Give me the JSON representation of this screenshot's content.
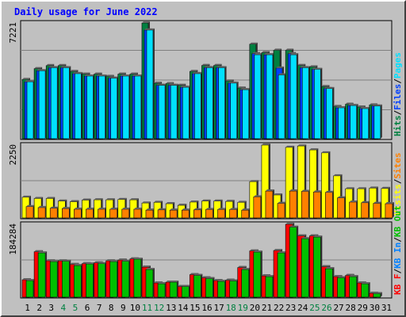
{
  "title": "Daily usage for June 2022",
  "colors": {
    "hits": "#008040",
    "files": "#0040ff",
    "pages": "#00e0ff",
    "visits": "#ffff00",
    "sites": "#ff8000",
    "kbin": "#0080ff",
    "kbout": "#00c000",
    "kbf": "#ff0000",
    "plot_bg": "#c0c0c0",
    "grid": "#808080",
    "weekend_label": "#008040",
    "day_label": "#000000"
  },
  "chart_data": [
    {
      "type": "bar",
      "panel": "requests",
      "categories": [
        "1",
        "2",
        "3",
        "4",
        "5",
        "6",
        "7",
        "8",
        "9",
        "10",
        "11",
        "12",
        "13",
        "14",
        "15",
        "16",
        "17",
        "18",
        "19",
        "20",
        "21",
        "22",
        "23",
        "24",
        "25",
        "26",
        "27",
        "28",
        "29",
        "30",
        "31"
      ],
      "ymax_label": "7221",
      "legend": [
        {
          "key": "hits",
          "label": "Hits"
        },
        {
          "key": "sep",
          "label": "/"
        },
        {
          "key": "files",
          "label": "Files"
        },
        {
          "key": "sep",
          "label": "/"
        },
        {
          "key": "pages",
          "label": "Pages"
        }
      ],
      "series": [
        {
          "name": "Hits",
          "key": "hits",
          "values": [
            3700,
            4370,
            4560,
            4560,
            4200,
            4030,
            4030,
            3890,
            4030,
            4030,
            7221,
            3460,
            3440,
            3330,
            4200,
            4570,
            4570,
            3600,
            3160,
            5900,
            5370,
            5520,
            5520,
            4570,
            4480,
            3250,
            2010,
            2150,
            1980,
            2110,
            0
          ]
        },
        {
          "name": "Files",
          "key": "files",
          "values": [
            3550,
            4240,
            4430,
            4430,
            4060,
            3910,
            3910,
            3780,
            3910,
            3910,
            6780,
            3330,
            3330,
            3210,
            4060,
            4430,
            4430,
            3470,
            3060,
            5310,
            5240,
            4410,
            5310,
            4430,
            4330,
            3130,
            1930,
            2070,
            1880,
            2040,
            0
          ]
        },
        {
          "name": "Pages",
          "key": "pages",
          "values": [
            3550,
            4240,
            4430,
            4430,
            4060,
            3910,
            3910,
            3780,
            3910,
            3910,
            6780,
            3330,
            3330,
            3210,
            4060,
            4430,
            4430,
            3470,
            3060,
            5240,
            5240,
            3980,
            5240,
            4430,
            4330,
            3130,
            1930,
            2070,
            1880,
            2040,
            0
          ]
        }
      ]
    },
    {
      "type": "bar",
      "panel": "visits",
      "categories": [
        "1",
        "2",
        "3",
        "4",
        "5",
        "6",
        "7",
        "8",
        "9",
        "10",
        "11",
        "12",
        "13",
        "14",
        "15",
        "16",
        "17",
        "18",
        "19",
        "20",
        "21",
        "22",
        "23",
        "24",
        "25",
        "26",
        "27",
        "28",
        "29",
        "30",
        "31"
      ],
      "ymax_label": "2250",
      "legend": [
        {
          "key": "visits",
          "label": "Visits"
        },
        {
          "key": "sep",
          "label": "/"
        },
        {
          "key": "sites",
          "label": "Sites"
        }
      ],
      "series": [
        {
          "name": "Visits",
          "key": "visits",
          "values": [
            640,
            600,
            600,
            520,
            500,
            550,
            560,
            560,
            570,
            560,
            460,
            480,
            440,
            390,
            490,
            520,
            520,
            510,
            480,
            1120,
            2250,
            710,
            2180,
            2220,
            2100,
            2010,
            1300,
            900,
            900,
            920,
            910
          ],
          "note": "day 31 has no bar"
        },
        {
          "name": "Sites",
          "key": "sites",
          "values": [
            350,
            320,
            300,
            290,
            270,
            270,
            270,
            270,
            270,
            270,
            240,
            250,
            240,
            240,
            250,
            260,
            260,
            260,
            240,
            650,
            830,
            450,
            830,
            820,
            800,
            790,
            620,
            490,
            470,
            450,
            440
          ]
        }
      ]
    },
    {
      "type": "bar",
      "panel": "kbytes",
      "categories": [
        "1",
        "2",
        "3",
        "4",
        "5",
        "6",
        "7",
        "8",
        "9",
        "10",
        "11",
        "12",
        "13",
        "14",
        "15",
        "16",
        "17",
        "18",
        "19",
        "20",
        "21",
        "22",
        "23",
        "24",
        "25",
        "26",
        "27",
        "28",
        "29",
        "30",
        "31"
      ],
      "ymax_label": "184284",
      "legend": [
        {
          "key": "kbf",
          "label": "KB F"
        },
        {
          "key": "sep",
          "label": "/"
        },
        {
          "key": "kbin",
          "label": "KB In"
        },
        {
          "key": "sep",
          "label": "/"
        },
        {
          "key": "kbout",
          "label": "KB Out"
        }
      ],
      "series": [
        {
          "name": "KB F",
          "key": "kbf",
          "values": [
            44000,
            115000,
            92000,
            92000,
            83000,
            85000,
            87000,
            92000,
            94000,
            97000,
            76000,
            36000,
            38000,
            27000,
            57000,
            49000,
            42000,
            43000,
            75000,
            117000,
            54000,
            118000,
            184284,
            155000,
            155000,
            77000,
            52000,
            55000,
            36000,
            10000,
            0
          ]
        },
        {
          "name": "KB Out",
          "key": "kbout",
          "values": [
            42000,
            112000,
            90000,
            91000,
            80000,
            84000,
            85000,
            90000,
            91000,
            96000,
            70000,
            34000,
            38000,
            27000,
            55000,
            47000,
            40000,
            41000,
            70000,
            114000,
            52000,
            112000,
            177000,
            148000,
            152000,
            72000,
            49000,
            52000,
            34000,
            9000,
            0
          ]
        }
      ]
    }
  ],
  "axis": {
    "x_labels": [
      "1",
      "2",
      "3",
      "4",
      "5",
      "6",
      "7",
      "8",
      "9",
      "10",
      "11",
      "12",
      "13",
      "14",
      "15",
      "16",
      "17",
      "18",
      "19",
      "20",
      "21",
      "22",
      "23",
      "24",
      "25",
      "26",
      "27",
      "28",
      "29",
      "30",
      "31"
    ],
    "weekend_days": [
      "4",
      "5",
      "11",
      "12",
      "18",
      "19",
      "25",
      "26"
    ]
  }
}
